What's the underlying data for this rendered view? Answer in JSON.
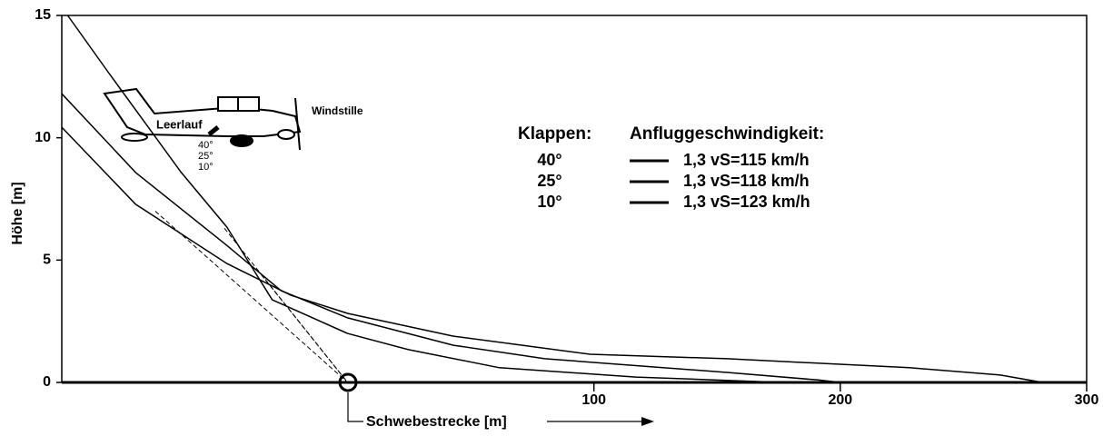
{
  "chart_data": {
    "type": "line",
    "ylabel": "Höhe [m]",
    "xlabel": "Schwebestrecke [m]",
    "xlim": [
      -116,
      300
    ],
    "ylim": [
      0,
      15
    ],
    "xticks": [
      100,
      200,
      300
    ],
    "yticks": [
      0,
      5,
      10,
      15
    ],
    "legend_title": "Klappen:",
    "legend_subtitle": "Anfluggeschwindigkeit:",
    "annotations": [
      "Windstille",
      "Leerlauf"
    ],
    "plane_flaps": [
      "40°",
      "25°",
      "10°"
    ],
    "series": [
      {
        "name": "40°",
        "speed": "1,3 vS=115 km/h",
        "color": "#000000",
        "x": [
          -113.6,
          -97,
          -67.5,
          -49,
          -30.6,
          0,
          24.7,
          61.6,
          117,
          176
        ],
        "y": [
          15,
          12.66,
          8.58,
          6.35,
          3.38,
          2.0,
          1.34,
          0.6,
          0.22,
          0
        ]
      },
      {
        "name": "25°",
        "speed": "1,3 vS=118 km/h",
        "color": "#000000",
        "x": [
          -116,
          -86,
          -49,
          -27,
          0,
          43,
          80,
          154,
          191,
          200
        ],
        "y": [
          11.8,
          8.58,
          5.6,
          3.75,
          2.64,
          1.52,
          0.97,
          0.41,
          0.1,
          0
        ]
      },
      {
        "name": "10°",
        "speed": "1,3 vS=123 km/h",
        "color": "#000000",
        "x": [
          -116,
          -86,
          -49,
          -23,
          0,
          43,
          98.5,
          154,
          228,
          265,
          282
        ],
        "y": [
          10.43,
          7.28,
          4.86,
          3.56,
          2.82,
          1.89,
          1.15,
          0.97,
          0.6,
          0.3,
          0
        ]
      }
    ],
    "approach_lines": [
      {
        "x": [
          -78,
          0
        ],
        "y": [
          7.0,
          0
        ]
      },
      {
        "x": [
          -50,
          0
        ],
        "y": [
          6.3,
          0
        ]
      },
      {
        "x": [
          -35,
          0
        ],
        "y": [
          4.4,
          0
        ]
      }
    ]
  }
}
